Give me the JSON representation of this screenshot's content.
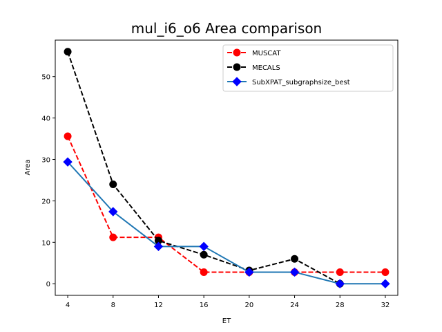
{
  "chart_data": {
    "type": "line",
    "title": "mul_i6_o6 Area comparison",
    "xlabel": "ET",
    "ylabel": "Area",
    "x": [
      4,
      8,
      12,
      16,
      20,
      24,
      28,
      32
    ],
    "xticks": [
      "4",
      "8",
      "12",
      "16",
      "20",
      "24",
      "28",
      "32"
    ],
    "yticks": [
      "0",
      "10",
      "20",
      "30",
      "40",
      "50"
    ],
    "xlim": [
      2.9,
      33.1
    ],
    "ylim": [
      -2.8,
      58.8
    ],
    "grid": false,
    "legend_position": "upper right",
    "series": [
      {
        "name": "MUSCAT",
        "color": "#ff0000",
        "linestyle": "dashed",
        "marker": "circle",
        "x": [
          4,
          8,
          12,
          16,
          20,
          24,
          28,
          32
        ],
        "values": [
          35.6,
          11.2,
          11.2,
          2.8,
          2.8,
          2.8,
          2.8,
          2.8
        ]
      },
      {
        "name": "MECALS",
        "color": "#000000",
        "linestyle": "dashed",
        "marker": "circle",
        "x": [
          4,
          8,
          12,
          16,
          20,
          24,
          28
        ],
        "values": [
          56.0,
          24.0,
          10.4,
          7.0,
          3.2,
          6.0,
          0.0
        ]
      },
      {
        "name": "SubXPAT_subgraphsize_best",
        "color": "#1f77b4",
        "marker_color": "#0000ff",
        "linestyle": "solid",
        "marker": "diamond",
        "x": [
          4,
          8,
          12,
          16,
          20,
          24,
          28,
          32
        ],
        "values": [
          29.4,
          17.4,
          9.0,
          9.0,
          2.8,
          2.8,
          0.0,
          0.0
        ]
      }
    ]
  }
}
